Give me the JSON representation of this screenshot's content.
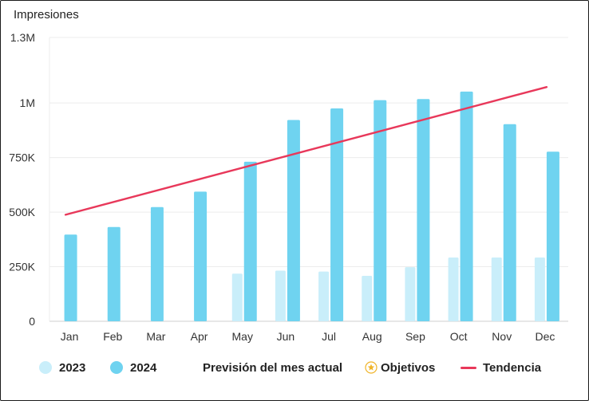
{
  "chart_data": {
    "type": "bar",
    "ylabel": "Impresiones",
    "ylim": [
      0,
      1300000
    ],
    "yticks": [
      {
        "value": 0,
        "label": "0"
      },
      {
        "value": 250000,
        "label": "250K"
      },
      {
        "value": 500000,
        "label": "500K"
      },
      {
        "value": 750000,
        "label": "750K"
      },
      {
        "value": 1000000,
        "label": "1M"
      },
      {
        "value": 1300000,
        "label": "1.3M"
      }
    ],
    "categories": [
      "Jan",
      "Feb",
      "Mar",
      "Apr",
      "May",
      "Jun",
      "Jul",
      "Aug",
      "Sep",
      "Oct",
      "Nov",
      "Dec"
    ],
    "series": [
      {
        "name": "2023",
        "color": "#c9eefa",
        "values": [
          null,
          null,
          null,
          null,
          218000,
          232000,
          228000,
          208000,
          248000,
          292000,
          292000,
          292000
        ]
      },
      {
        "name": "2024",
        "color": "#6fd3f0",
        "values": [
          397000,
          432000,
          523000,
          594000,
          731000,
          922000,
          975000,
          1013000,
          1018000,
          1052000,
          903000,
          777000
        ]
      }
    ],
    "trend": {
      "name": "Tendencia",
      "color": "#e8385a",
      "start": 488000,
      "end": 1073000
    },
    "grid": true,
    "legend_position": "bottom"
  },
  "legend": {
    "items": [
      {
        "label": "2023",
        "type": "dot",
        "color": "#c9eefa"
      },
      {
        "label": "2024",
        "type": "dot",
        "color": "#6fd3f0"
      },
      {
        "label": "Previsión del mes actual",
        "type": "none"
      },
      {
        "label": "Objetivos",
        "type": "star",
        "color": "#f0b429"
      },
      {
        "label": "Tendencia",
        "type": "line",
        "color": "#e8385a"
      }
    ]
  }
}
